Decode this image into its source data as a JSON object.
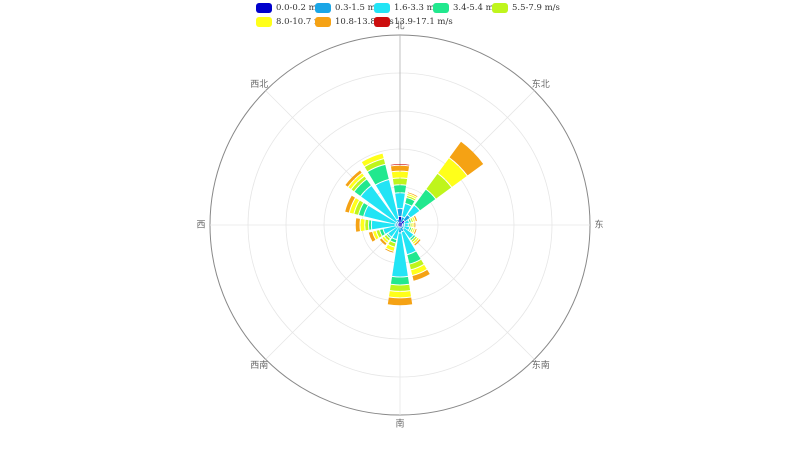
{
  "chart_data": {
    "type": "wind-rose",
    "title": "",
    "angle_axis": {
      "labels": [
        "北",
        "",
        "东北",
        "",
        "东",
        "",
        "东南",
        "",
        "南",
        "",
        "西南",
        "",
        "西",
        "",
        "西北",
        ""
      ]
    },
    "radius_axis": {
      "max": 100,
      "gridlines": [
        20,
        40,
        60,
        80,
        100
      ]
    },
    "legend": {
      "position": "top"
    },
    "series": [
      {
        "name": "0.0-0.2 m/s",
        "color": "#0000cc"
      },
      {
        "name": "0.3-1.5 m/s",
        "color": "#1aa6e6"
      },
      {
        "name": "1.6-3.3 m/s",
        "color": "#22e4f5"
      },
      {
        "name": "3.4-5.4 m/s",
        "color": "#21e88e"
      },
      {
        "name": "5.5-7.9 m/s",
        "color": "#bff51c"
      },
      {
        "name": "8.0-10.7 m/s",
        "color": "#ffff1a"
      },
      {
        "name": "10.8-13.8 m/s",
        "color": "#f5a214"
      },
      {
        "name": "13.9-17.1 m/s",
        "color": "#cc0d0d"
      }
    ],
    "values": [
      [
        4.2,
        4.2,
        8.3,
        4.2,
        3.6,
        3.6,
        3.1,
        0.7
      ],
      [
        1.1,
        3.1,
        7.2,
        3.2,
        1.1,
        1.1,
        0.9,
        0
      ],
      [
        2.8,
        3.6,
        6.2,
        10.4,
        10.4,
        10.2,
        10.7,
        0
      ],
      [
        1.1,
        1.1,
        2.6,
        1.1,
        1.1,
        1.1,
        1.1,
        0
      ],
      [
        1.0,
        1.0,
        2.1,
        1.0,
        1.0,
        1.0,
        1.0,
        0
      ],
      [
        1.0,
        1.0,
        3.0,
        1.0,
        1.0,
        1.0,
        1.0,
        0
      ],
      [
        1.1,
        1.2,
        6.3,
        1.2,
        1.2,
        1.2,
        1.2,
        0
      ],
      [
        0.9,
        2.5,
        12.4,
        5.1,
        3.1,
        3.1,
        3.1,
        0
      ],
      [
        0.9,
        3.0,
        23.2,
        4.2,
        3.4,
        3.4,
        4.1,
        0
      ],
      [
        0.7,
        0.6,
        6.3,
        1.9,
        2.2,
        2.3,
        1.0,
        0
      ],
      [
        0.7,
        0.6,
        6.2,
        1.0,
        1.5,
        1.5,
        1.6,
        0
      ],
      [
        0.9,
        1.0,
        7.0,
        1.9,
        1.9,
        1.9,
        2.3,
        0
      ],
      [
        0.9,
        1.4,
        12.5,
        1.5,
        2.0,
        2.5,
        2.5,
        0
      ],
      [
        1.0,
        1.0,
        17.4,
        2.8,
        2.5,
        2.5,
        2.5,
        0
      ],
      [
        1.0,
        1.0,
        23.4,
        4.2,
        2.0,
        2.0,
        2.0,
        0
      ],
      [
        1.2,
        1.8,
        21.4,
        8.2,
        3.1,
        3.0,
        0,
        0
      ]
    ]
  }
}
